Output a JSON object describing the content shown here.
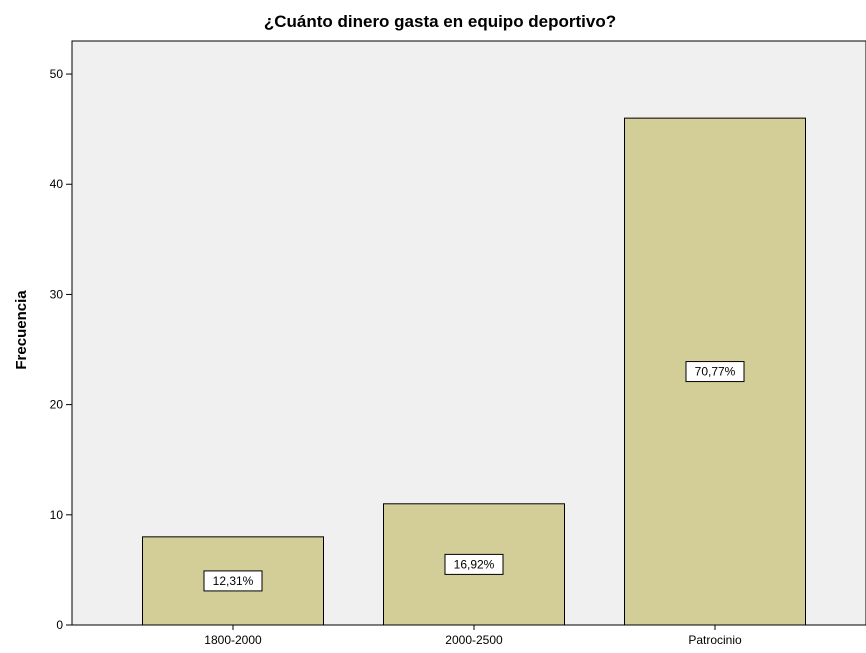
{
  "chart_data": {
    "type": "bar",
    "title": "¿Cuánto dinero gasta en equipo deportivo?",
    "xlabel": "",
    "ylabel": "Frecuencia",
    "categories": [
      "1800-2000",
      "2000-2500",
      "Patrocinio"
    ],
    "values": [
      8,
      11,
      46
    ],
    "data_labels": [
      "12,31%",
      "16,92%",
      "70,77%"
    ],
    "ylim": [
      0,
      53
    ],
    "yticks": [
      0,
      10,
      20,
      30,
      40,
      50
    ],
    "grid": false,
    "legend": "none",
    "colors": {
      "bar_fill": "#d3cd98",
      "bar_stroke": "#000000",
      "plot_background": "#f0f0f0",
      "axis": "#000000"
    }
  }
}
